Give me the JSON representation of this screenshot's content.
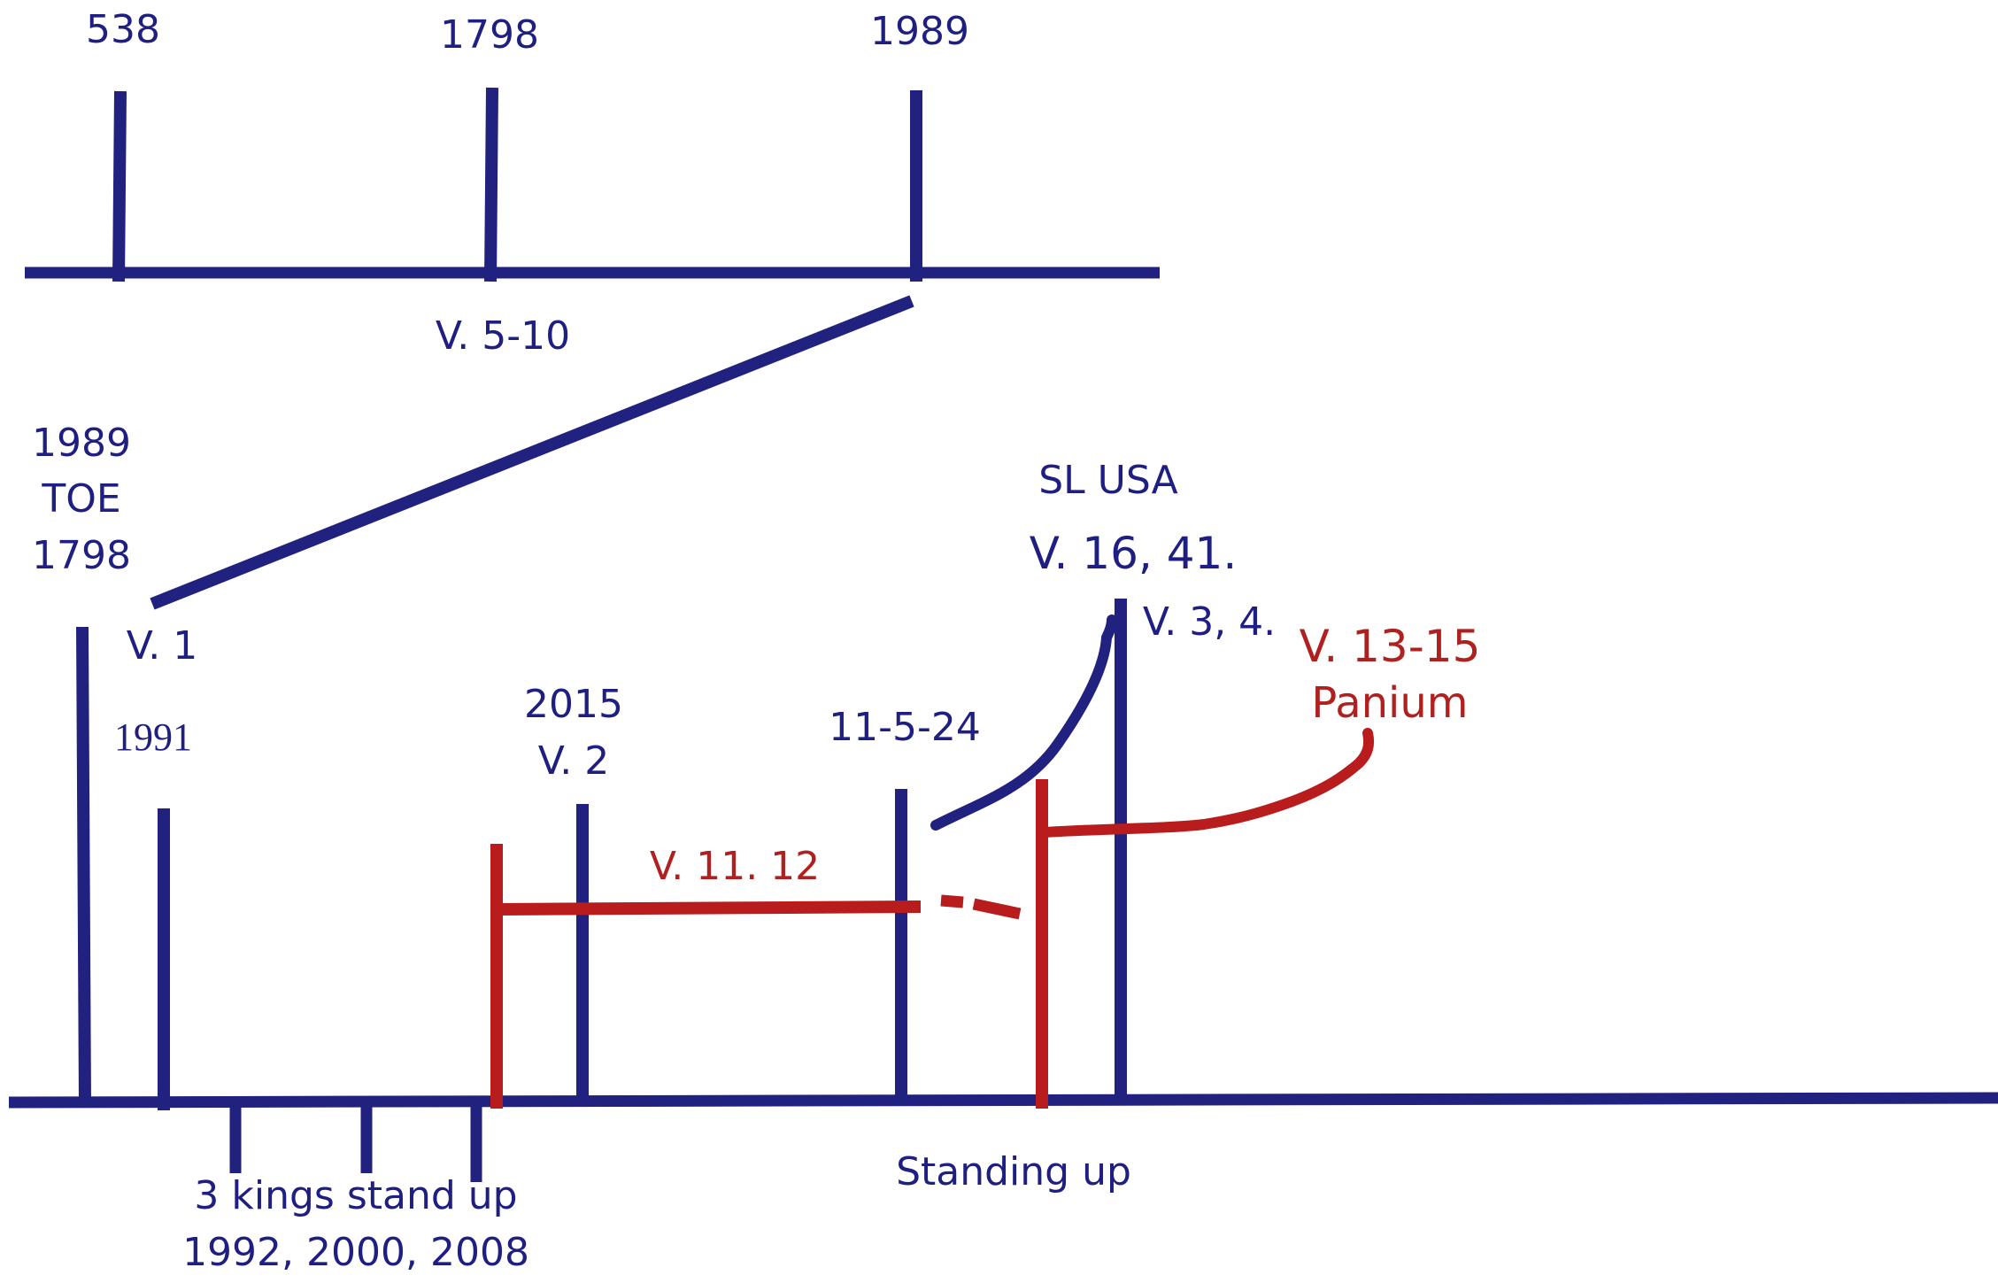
{
  "colors": {
    "primary_line": "#21217f",
    "accent_line": "#b81c1c",
    "text_blue": "#1f1f82",
    "text_red": "#b0201f",
    "background": "#ffffff"
  },
  "top_timeline": {
    "ticks": [
      "538",
      "1798",
      "1989"
    ],
    "verse_label": "V. 5-10"
  },
  "left_block": {
    "line1": "1989",
    "line2": "TOE",
    "line3": "1798",
    "verse": "V. 1",
    "year_1991": "1991"
  },
  "labels": {
    "y2015": "2015",
    "v2": "V. 2",
    "date_11_5_24": "11-5-24",
    "sl_usa": "SL USA",
    "v16_41": "V. 16, 41.",
    "v3_4": "V. 3, 4.",
    "v13_15": "V. 13-15",
    "panium": "Panium",
    "v11_12": "V. 11. 12",
    "standing_up": "Standing up",
    "three_kings": "3 kings stand up",
    "kings_years": "1992, 2000, 2008"
  }
}
